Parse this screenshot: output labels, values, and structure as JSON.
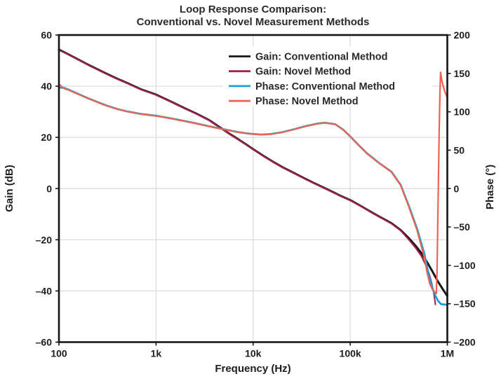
{
  "chart_data": {
    "type": "line",
    "title": "Loop Response Comparison: Conventional vs. Novel Measurement Methods",
    "title_line1": "Loop Response Comparison:",
    "title_line2": "Conventional vs. Novel Measurement Methods",
    "xlabel": "Frequency (Hz)",
    "ylabel_left": "Gain (dB)",
    "ylabel_right": "Phase (°)",
    "grid": true,
    "legend_position": "upper-center-inside",
    "axes": {
      "x": {
        "scale": "log",
        "min": 100,
        "max": 1000000,
        "ticks": [
          {
            "label": "100",
            "value": 100
          },
          {
            "label": "1k",
            "value": 1000
          },
          {
            "label": "10k",
            "value": 10000
          },
          {
            "label": "100k",
            "value": 100000
          },
          {
            "label": "1M",
            "value": 1000000
          }
        ]
      },
      "y_left": {
        "min": -60,
        "max": 60,
        "ticks": [
          {
            "label": "60",
            "value": 60
          },
          {
            "label": "40",
            "value": 40
          },
          {
            "label": "20",
            "value": 20
          },
          {
            "label": "0",
            "value": 0
          },
          {
            "label": "–20",
            "value": -20
          },
          {
            "label": "–40",
            "value": -40
          },
          {
            "label": "–60",
            "value": -60
          }
        ]
      },
      "y_right": {
        "min": -200,
        "max": 200,
        "ticks": [
          {
            "label": "200",
            "value": 200
          },
          {
            "label": "150",
            "value": 150
          },
          {
            "label": "100",
            "value": 100
          },
          {
            "label": "50",
            "value": 50
          },
          {
            "label": "0",
            "value": 0
          },
          {
            "label": "–50",
            "value": -50
          },
          {
            "label": "–100",
            "value": -100
          },
          {
            "label": "–150",
            "value": -150
          },
          {
            "label": "–200",
            "value": -200
          }
        ]
      }
    },
    "colors": {
      "gain_conventional": "#17171b",
      "gain_novel": "#a22349",
      "phase_conventional": "#1aa0d8",
      "phase_novel": "#ec6451",
      "grid": "#d9d9d9",
      "frame": "#161618"
    },
    "series": [
      {
        "name": "Gain: Conventional Method",
        "axis": "left",
        "unit": "dB",
        "color": "#17171b",
        "width": 3.0,
        "points": [
          [
            100,
            54.3
          ],
          [
            120,
            52.8
          ],
          [
            150,
            50.9
          ],
          [
            200,
            48.4
          ],
          [
            300,
            45.1
          ],
          [
            400,
            42.9
          ],
          [
            500,
            41.3
          ],
          [
            700,
            38.8
          ],
          [
            1000,
            36.7
          ],
          [
            1500,
            33.6
          ],
          [
            2000,
            31.3
          ],
          [
            2600,
            29.3
          ],
          [
            3500,
            26.8
          ],
          [
            5000,
            22.9
          ],
          [
            5600,
            21.6
          ],
          [
            7000,
            19.3
          ],
          [
            8500,
            17.2
          ],
          [
            10000,
            15.4
          ],
          [
            13000,
            12.6
          ],
          [
            16000,
            10.5
          ],
          [
            20000,
            8.4
          ],
          [
            26000,
            6.2
          ],
          [
            33000,
            4.2
          ],
          [
            42000,
            2.2
          ],
          [
            52000,
            0.6
          ],
          [
            65000,
            -1.2
          ],
          [
            80000,
            -2.9
          ],
          [
            100000,
            -4.5
          ],
          [
            130000,
            -6.9
          ],
          [
            160000,
            -8.9
          ],
          [
            200000,
            -11.0
          ],
          [
            265000,
            -13.5
          ],
          [
            330000,
            -16.2
          ],
          [
            400000,
            -19.3
          ],
          [
            470000,
            -22.3
          ],
          [
            540000,
            -25.2
          ],
          [
            620000,
            -28.8
          ],
          [
            700000,
            -32.3
          ],
          [
            800000,
            -36.3
          ],
          [
            900000,
            -39.4
          ],
          [
            1000000,
            -42.0
          ]
        ]
      },
      {
        "name": "Gain: Novel Method",
        "axis": "left",
        "unit": "dB",
        "color": "#a22349",
        "width": 2.0,
        "points": [
          [
            100,
            54.1
          ],
          [
            120,
            52.7
          ],
          [
            150,
            50.8
          ],
          [
            200,
            48.3
          ],
          [
            300,
            45.0
          ],
          [
            400,
            42.8
          ],
          [
            500,
            41.2
          ],
          [
            700,
            38.7
          ],
          [
            1000,
            36.6
          ],
          [
            1500,
            33.5
          ],
          [
            2000,
            31.2
          ],
          [
            2600,
            29.2
          ],
          [
            3500,
            26.7
          ],
          [
            5000,
            22.8
          ],
          [
            5600,
            21.5
          ],
          [
            7000,
            19.2
          ],
          [
            8500,
            17.1
          ],
          [
            10000,
            15.3
          ],
          [
            13000,
            12.5
          ],
          [
            16000,
            10.4
          ],
          [
            20000,
            8.3
          ],
          [
            26000,
            6.1
          ],
          [
            33000,
            4.1
          ],
          [
            42000,
            2.1
          ],
          [
            52000,
            0.5
          ],
          [
            65000,
            -1.3
          ],
          [
            80000,
            -3.0
          ],
          [
            100000,
            -4.6
          ],
          [
            130000,
            -7.0
          ],
          [
            160000,
            -9.0
          ],
          [
            200000,
            -11.1
          ],
          [
            265000,
            -13.7
          ],
          [
            330000,
            -16.4
          ],
          [
            400000,
            -19.9
          ],
          [
            470000,
            -23.1
          ],
          [
            540000,
            -26.4
          ],
          [
            600000,
            -29.9
          ],
          [
            650000,
            -33.3
          ],
          [
            690000,
            -36.9
          ],
          [
            720000,
            -40.3
          ],
          [
            740000,
            -43.0
          ],
          [
            755000,
            -45.3
          ]
        ]
      },
      {
        "name": "Phase: Conventional Method",
        "axis": "right",
        "unit": "deg",
        "color": "#1aa0d8",
        "width": 2.8,
        "points": [
          [
            100,
            131.5
          ],
          [
            112,
            131.3
          ],
          [
            125,
            129.0
          ],
          [
            150,
            124.5
          ],
          [
            200,
            117.5
          ],
          [
            250,
            112.6
          ],
          [
            300,
            108.7
          ],
          [
            400,
            103.6
          ],
          [
            500,
            100.6
          ],
          [
            700,
            97.2
          ],
          [
            1000,
            94.8
          ],
          [
            1500,
            90.9
          ],
          [
            2000,
            87.8
          ],
          [
            2600,
            84.8
          ],
          [
            3500,
            81.2
          ],
          [
            5000,
            77.2
          ],
          [
            7000,
            73.6
          ],
          [
            9000,
            71.6
          ],
          [
            12000,
            70.4
          ],
          [
            15000,
            70.9
          ],
          [
            20000,
            73.5
          ],
          [
            27000,
            77.6
          ],
          [
            35000,
            81.4
          ],
          [
            45000,
            84.4
          ],
          [
            55000,
            85.8
          ],
          [
            70000,
            83.8
          ],
          [
            85000,
            76.5
          ],
          [
            100000,
            68.0
          ],
          [
            120000,
            57.5
          ],
          [
            150000,
            45.5
          ],
          [
            200000,
            33.0
          ],
          [
            265000,
            22.0
          ],
          [
            330000,
            5.0
          ],
          [
            400000,
            -22.0
          ],
          [
            490000,
            -53.0
          ],
          [
            580000,
            -85.0
          ],
          [
            620000,
            -103.0
          ],
          [
            660000,
            -118.0
          ],
          [
            700000,
            -129.0
          ],
          [
            750000,
            -139.0
          ],
          [
            800000,
            -146.0
          ],
          [
            860000,
            -150.5
          ],
          [
            1000000,
            -151.5
          ]
        ]
      },
      {
        "name": "Phase: Novel Method",
        "axis": "right",
        "unit": "deg",
        "color": "#ec6451",
        "width": 2.2,
        "points": [
          [
            100,
            136.0
          ],
          [
            112,
            130.5
          ],
          [
            125,
            128.5
          ],
          [
            150,
            124.0
          ],
          [
            200,
            117.3
          ],
          [
            250,
            112.4
          ],
          [
            300,
            108.5
          ],
          [
            400,
            103.4
          ],
          [
            500,
            100.4
          ],
          [
            700,
            97.0
          ],
          [
            1000,
            94.6
          ],
          [
            1500,
            90.7
          ],
          [
            2000,
            87.6
          ],
          [
            2600,
            84.6
          ],
          [
            3500,
            81.0
          ],
          [
            5000,
            77.0
          ],
          [
            7000,
            73.4
          ],
          [
            9000,
            71.4
          ],
          [
            12000,
            70.2
          ],
          [
            15000,
            70.7
          ],
          [
            20000,
            73.3
          ],
          [
            27000,
            77.4
          ],
          [
            35000,
            81.2
          ],
          [
            45000,
            84.2
          ],
          [
            55000,
            85.6
          ],
          [
            70000,
            83.6
          ],
          [
            85000,
            76.3
          ],
          [
            100000,
            67.8
          ],
          [
            120000,
            57.3
          ],
          [
            150000,
            45.3
          ],
          [
            200000,
            32.8
          ],
          [
            265000,
            21.8
          ],
          [
            330000,
            4.5
          ],
          [
            400000,
            -23.0
          ],
          [
            490000,
            -55.0
          ],
          [
            580000,
            -90.0
          ],
          [
            620000,
            -110.0
          ],
          [
            660000,
            -124.0
          ],
          [
            700000,
            -131.0
          ],
          [
            740000,
            -134.8
          ],
          [
            770000,
            -136.5
          ],
          [
            783000,
            -110.0
          ],
          [
            796000,
            -50.0
          ],
          [
            810000,
            10.0
          ],
          [
            825000,
            75.0
          ],
          [
            840000,
            125.0
          ],
          [
            852000,
            151.5
          ],
          [
            880000,
            140.0
          ],
          [
            930000,
            128.5
          ],
          [
            1000000,
            118.0
          ]
        ]
      }
    ]
  }
}
